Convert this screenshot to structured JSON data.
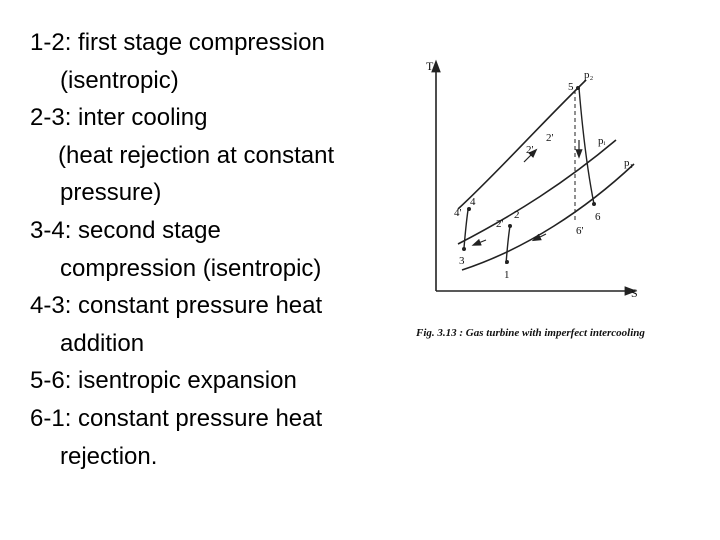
{
  "lines": [
    "1-2: first stage compression",
    "(isentropic)",
    "2-3: inter cooling",
    "(heat rejection at constant",
    "pressure)",
    "3-4: second stage",
    "compression (isentropic)",
    "4-3: constant pressure heat",
    "addition",
    "5-6: isentropic expansion",
    "6-1: constant pressure heat",
    "rejection."
  ],
  "diagram": {
    "axis_y": "T",
    "axis_x": "S",
    "points": {
      "p1": "1",
      "p2": "2",
      "p2p": "2'",
      "p2pp": "2'",
      "p3": "3",
      "p4": "4",
      "p4p": "4'",
      "p5": "5",
      "p6": "6",
      "p6p": "6'"
    },
    "pressures": {
      "p2": "p₂",
      "pi": "pᵢ",
      "p1": "p₁"
    },
    "caption": "Fig. 3.13 : Gas turbine with imperfect intercooling"
  }
}
